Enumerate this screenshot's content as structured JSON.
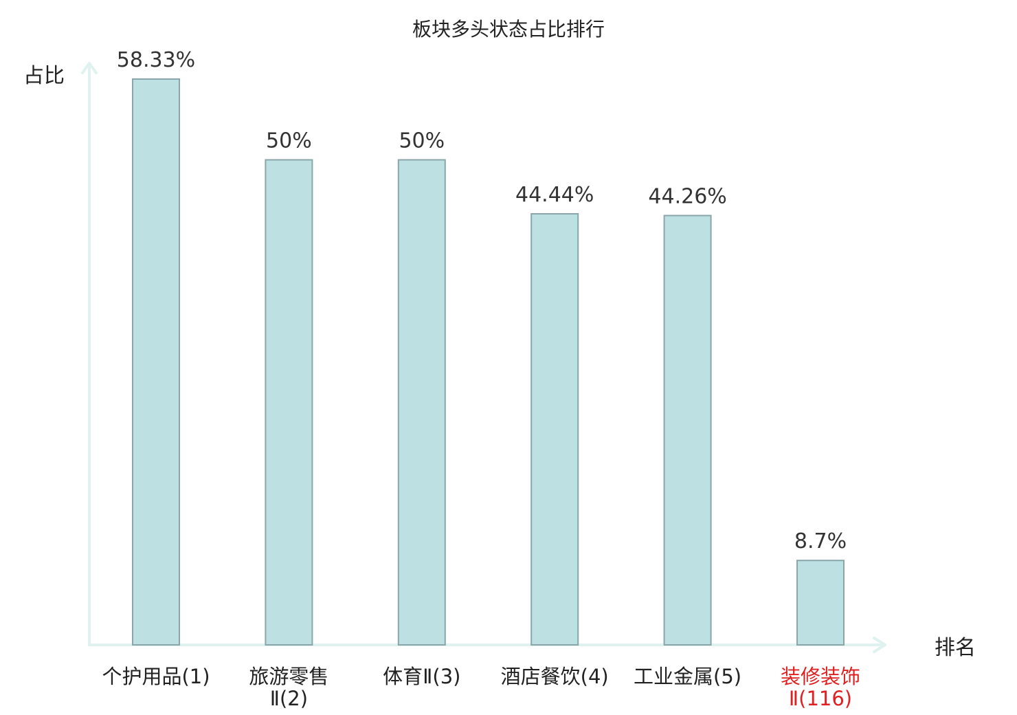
{
  "chart_data": {
    "type": "bar",
    "title": "板块多头状态占比排行",
    "ylabel": "占比",
    "xlabel": "排名",
    "categories": [
      [
        "个护用品(1)"
      ],
      [
        "旅游零售",
        "Ⅱ(2)"
      ],
      [
        "体育Ⅱ(3)"
      ],
      [
        "酒店餐饮(4)"
      ],
      [
        "工业金属(5)"
      ],
      [
        "装修装饰",
        "Ⅱ(116)"
      ]
    ],
    "values": [
      58.33,
      50,
      50,
      44.44,
      44.26,
      8.7
    ],
    "value_labels": [
      "58.33%",
      "50%",
      "50%",
      "44.44%",
      "44.26%",
      "8.7%"
    ],
    "highlight_index": 5,
    "ylim": [
      0,
      58.33
    ],
    "grid": false,
    "colors": {
      "bar_fill": "#bde0e3",
      "bar_stroke": "#8aa6aa",
      "axis": "#dff2ef",
      "text": "#333333",
      "highlight": "#e02020"
    }
  }
}
